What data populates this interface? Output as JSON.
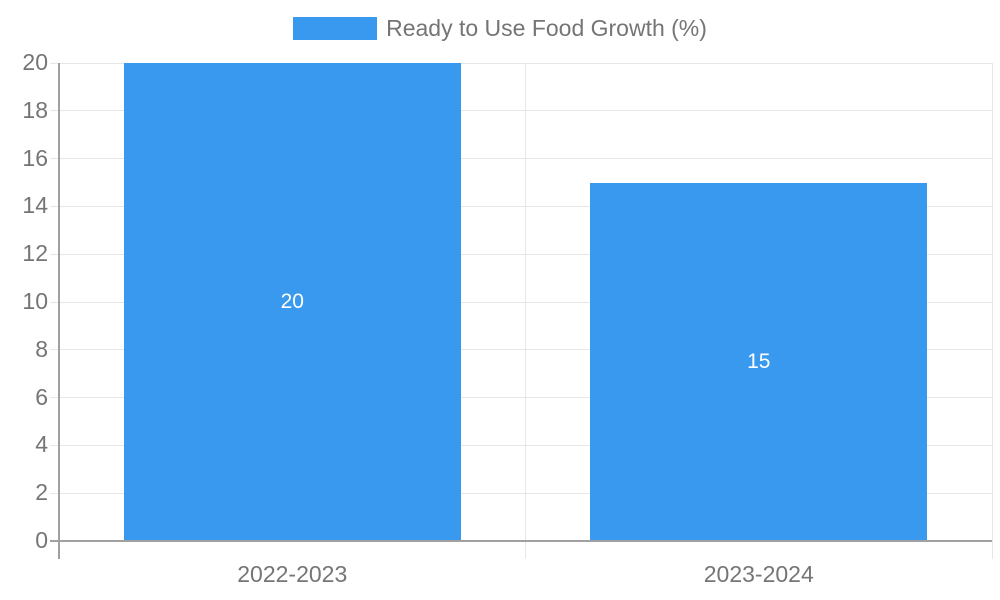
{
  "chart_data": {
    "type": "bar",
    "title": "",
    "categories": [
      "2022-2023",
      "2023-2024"
    ],
    "series": [
      {
        "name": "Ready to Use Food Growth (%)",
        "values": [
          20,
          15
        ]
      }
    ],
    "bar_value_labels": [
      "20",
      "15"
    ],
    "xlabel": "",
    "ylabel": "",
    "ylim": [
      0,
      20
    ],
    "ytick_step": 2,
    "ytick_labels": [
      "0",
      "2",
      "4",
      "6",
      "8",
      "10",
      "12",
      "14",
      "16",
      "18",
      "20"
    ],
    "grid": true,
    "legend": {
      "position": "top",
      "entries": [
        "Ready to Use Food Growth (%)"
      ]
    },
    "colors": {
      "bar": "#3899ee",
      "grid": "#e6e6e6",
      "axis": "#a0a0a0",
      "tick_text": "#757575",
      "bar_label_text": "#ffffff",
      "background": "#ffffff"
    }
  }
}
